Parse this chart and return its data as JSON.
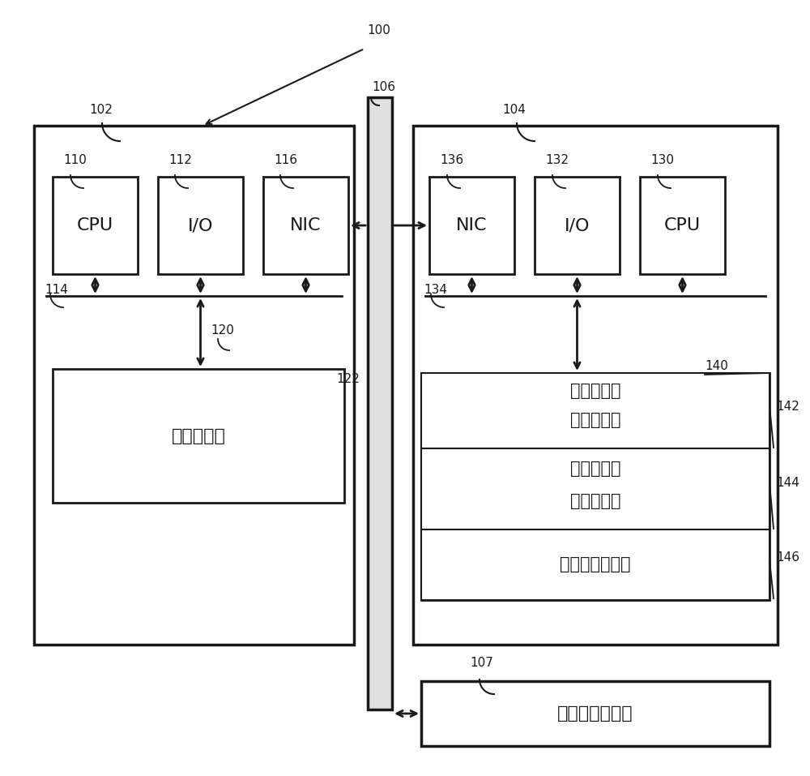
{
  "bg_color": "#ffffff",
  "line_color": "#1a1a1a",
  "label_100": "100",
  "label_102": "102",
  "label_104": "104",
  "label_106": "106",
  "label_107": "107",
  "label_110": "110",
  "label_112": "112",
  "label_114": "114",
  "label_116": "116",
  "label_120": "120",
  "label_122": "122",
  "label_130": "130",
  "label_132": "132",
  "label_134": "134",
  "label_136": "136",
  "label_140": "140",
  "label_142": "142",
  "label_144": "144",
  "label_146": "146",
  "text_cpu_left": "CPU",
  "text_io_left": "I/O",
  "text_nic_left": "NIC",
  "text_cpu_right": "CPU",
  "text_io_right": "I/O",
  "text_nic_right": "NIC",
  "text_client_app": "客户端应用",
  "text_box142a": "脑特征活动",
  "text_box142b": "图谱生成器",
  "text_box144a": "脑特征活动",
  "text_box144b": "图谱数据库",
  "text_box146": "新的刺激处理器",
  "text_brain_device": "脑活动测量装置",
  "font_size_label": 11,
  "font_size_box": 15,
  "font_size_large": 16,
  "font_size_title": 13
}
